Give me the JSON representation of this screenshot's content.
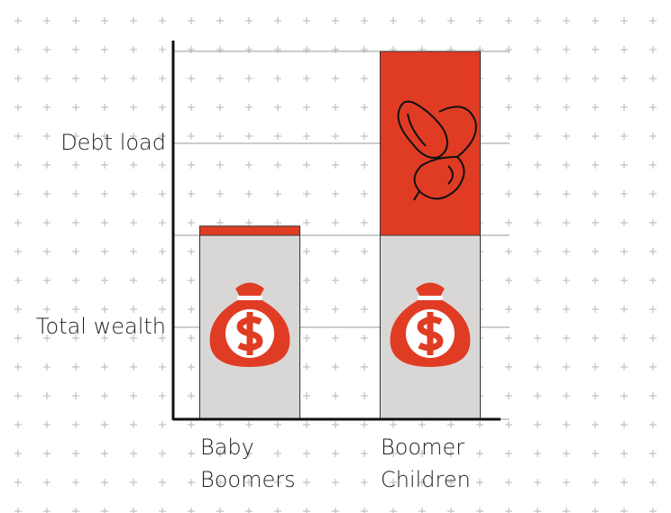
{
  "chart_data": {
    "type": "stacked-bar",
    "categories": [
      "Baby Boomers",
      "Boomer Children"
    ],
    "series": [
      {
        "name": "Total wealth",
        "color": "#d9d7d5",
        "values": [
          2,
          2
        ]
      },
      {
        "name": "Debt load",
        "color": "#e03c24",
        "values": [
          0.1,
          2
        ]
      }
    ],
    "ylim": [
      0,
      4
    ],
    "yticks": [
      0,
      1,
      2,
      3,
      4
    ],
    "grid": true
  }
}
